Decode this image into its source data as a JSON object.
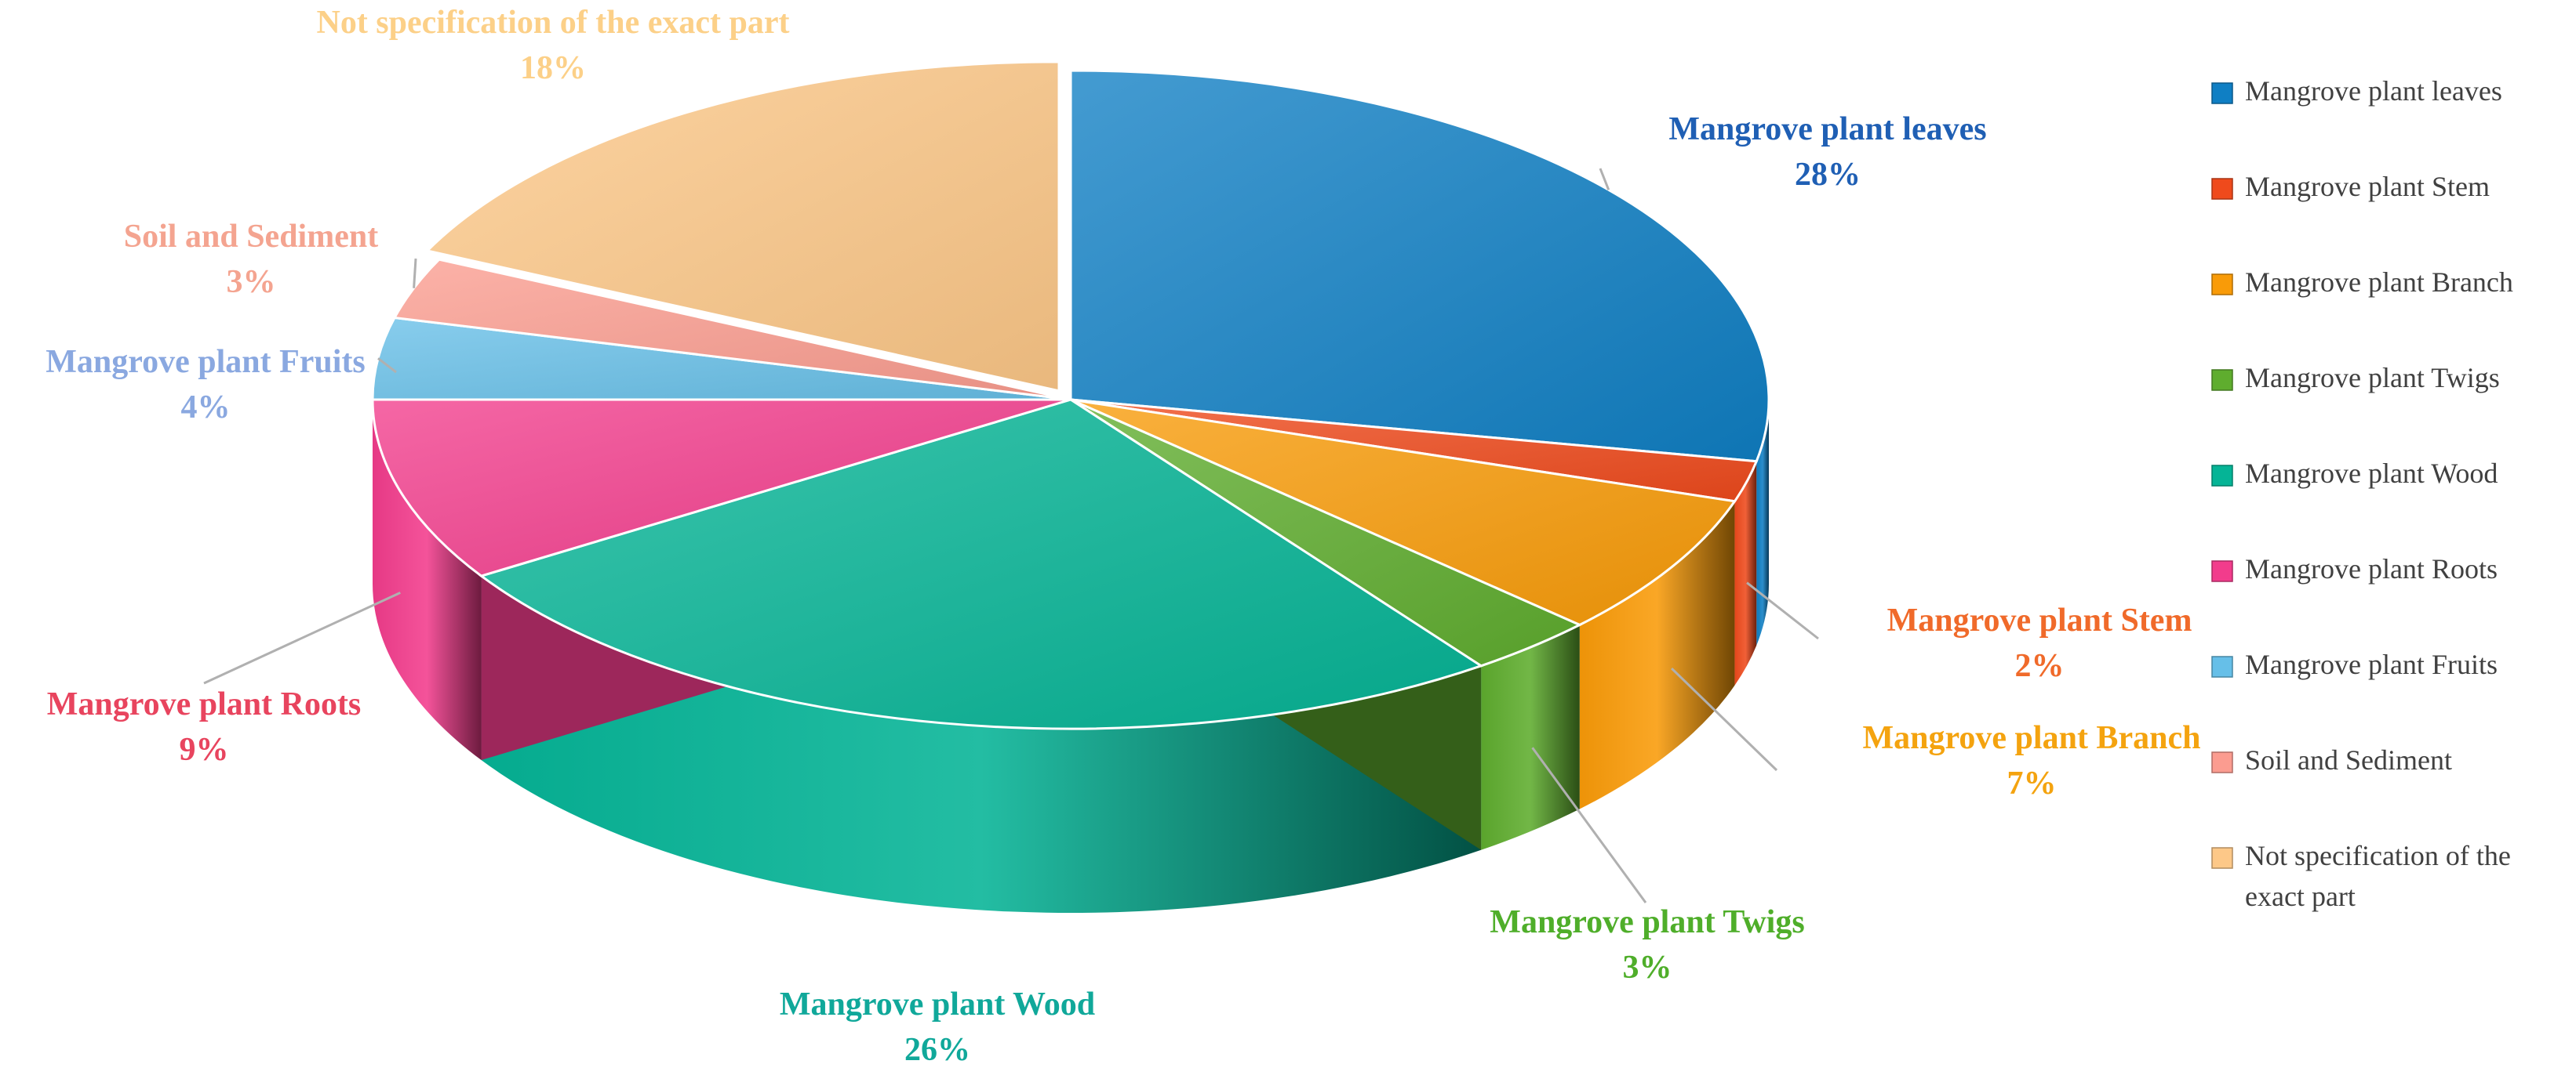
{
  "chart_data": {
    "type": "pie",
    "title": "",
    "style": "3d-exploded",
    "legend_position": "right",
    "slices": [
      {
        "name": "Mangrove plant leaves",
        "label": "Mangrove plant leaves",
        "value": 28,
        "value_label": "28%",
        "color": "#0f7fc4",
        "label_color": "#1f5fb4"
      },
      {
        "name": "Mangrove plant Stem",
        "label": "Mangrove plant Stem",
        "value": 2,
        "value_label": "2%",
        "color": "#ef4a1c",
        "label_color": "#f06a2a"
      },
      {
        "name": "Mangrove plant Branch",
        "label": "Mangrove plant Branch",
        "value": 7,
        "value_label": "7%",
        "color": "#f99b08",
        "label_color": "#f4a30f"
      },
      {
        "name": "Mangrove plant Twigs",
        "label": "Mangrove plant Twigs",
        "value": 3,
        "value_label": "3%",
        "color": "#5fad2e",
        "label_color": "#4fae2a"
      },
      {
        "name": "Mangrove plant Wood",
        "label": "Mangrove plant Wood",
        "value": 26,
        "value_label": "26%",
        "color": "#05b496",
        "label_color": "#10a89a"
      },
      {
        "name": "Mangrove plant Roots",
        "label": "Mangrove plant Roots",
        "value": 9,
        "value_label": "9%",
        "color": "#f23c8c",
        "label_color": "#e8445e"
      },
      {
        "name": "Mangrove plant Fruits",
        "label": "Mangrove plant Fruits",
        "value": 4,
        "value_label": "4%",
        "color": "#66bfe8",
        "label_color": "#8aa8e0"
      },
      {
        "name": "Soil and Sediment",
        "label": "Soil and Sediment",
        "value": 3,
        "value_label": "3%",
        "color": "#fb9c90",
        "label_color": "#f4a490"
      },
      {
        "name": "Not specification of the exact part",
        "label": "Not specification of the exact part",
        "value": 18,
        "value_label": "18%",
        "color": "#fdc888",
        "label_color": "#fcd088"
      }
    ],
    "legend": [
      {
        "lines": [
          "Mangrove plant leaves"
        ],
        "color": "#0f7fc4"
      },
      {
        "lines": [
          "Mangrove plant Stem"
        ],
        "color": "#ef4a1c"
      },
      {
        "lines": [
          "Mangrove plant Branch"
        ],
        "color": "#f99b08"
      },
      {
        "lines": [
          "Mangrove plant Twigs"
        ],
        "color": "#5fad2e"
      },
      {
        "lines": [
          "Mangrove plant Wood"
        ],
        "color": "#05b496"
      },
      {
        "lines": [
          "Mangrove plant Roots"
        ],
        "color": "#f23c8c"
      },
      {
        "lines": [
          "Mangrove plant Fruits"
        ],
        "color": "#66bfe8"
      },
      {
        "lines": [
          "Soil and Sediment"
        ],
        "color": "#fb9c90"
      },
      {
        "lines": [
          "Not specification of the",
          "exact part"
        ],
        "color": "#fdc888"
      }
    ]
  }
}
